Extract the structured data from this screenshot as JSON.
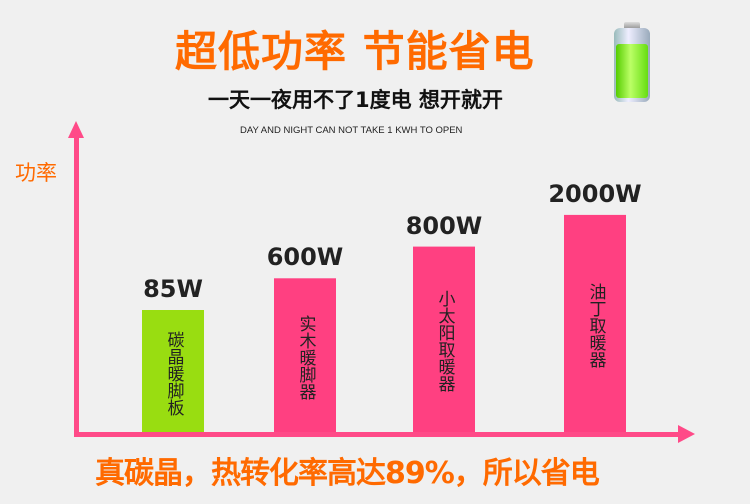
{
  "header": {
    "title": "超低功率 节能省电",
    "subtitle": "一天一夜用不了1度电 想开就开",
    "english": "DAY AND NIGHT CAN NOT TAKE 1 KWH TO OPEN"
  },
  "footer": {
    "text": "真碳晶，热转化率高达89%，所以省电"
  },
  "chart_data": {
    "type": "bar",
    "ylabel": "功率",
    "categories": [
      "碳晶暖脚板",
      "实木暖脚器",
      "小太阳取暖器",
      "油丁取暖器"
    ],
    "values": [
      85,
      600,
      800,
      2000
    ],
    "value_labels": [
      "85W",
      "600W",
      "800W",
      "2000W"
    ],
    "colors": [
      "#99dd11",
      "#ff4081",
      "#ff4081",
      "#ff4081"
    ],
    "axis_color": "#ff4a88"
  }
}
